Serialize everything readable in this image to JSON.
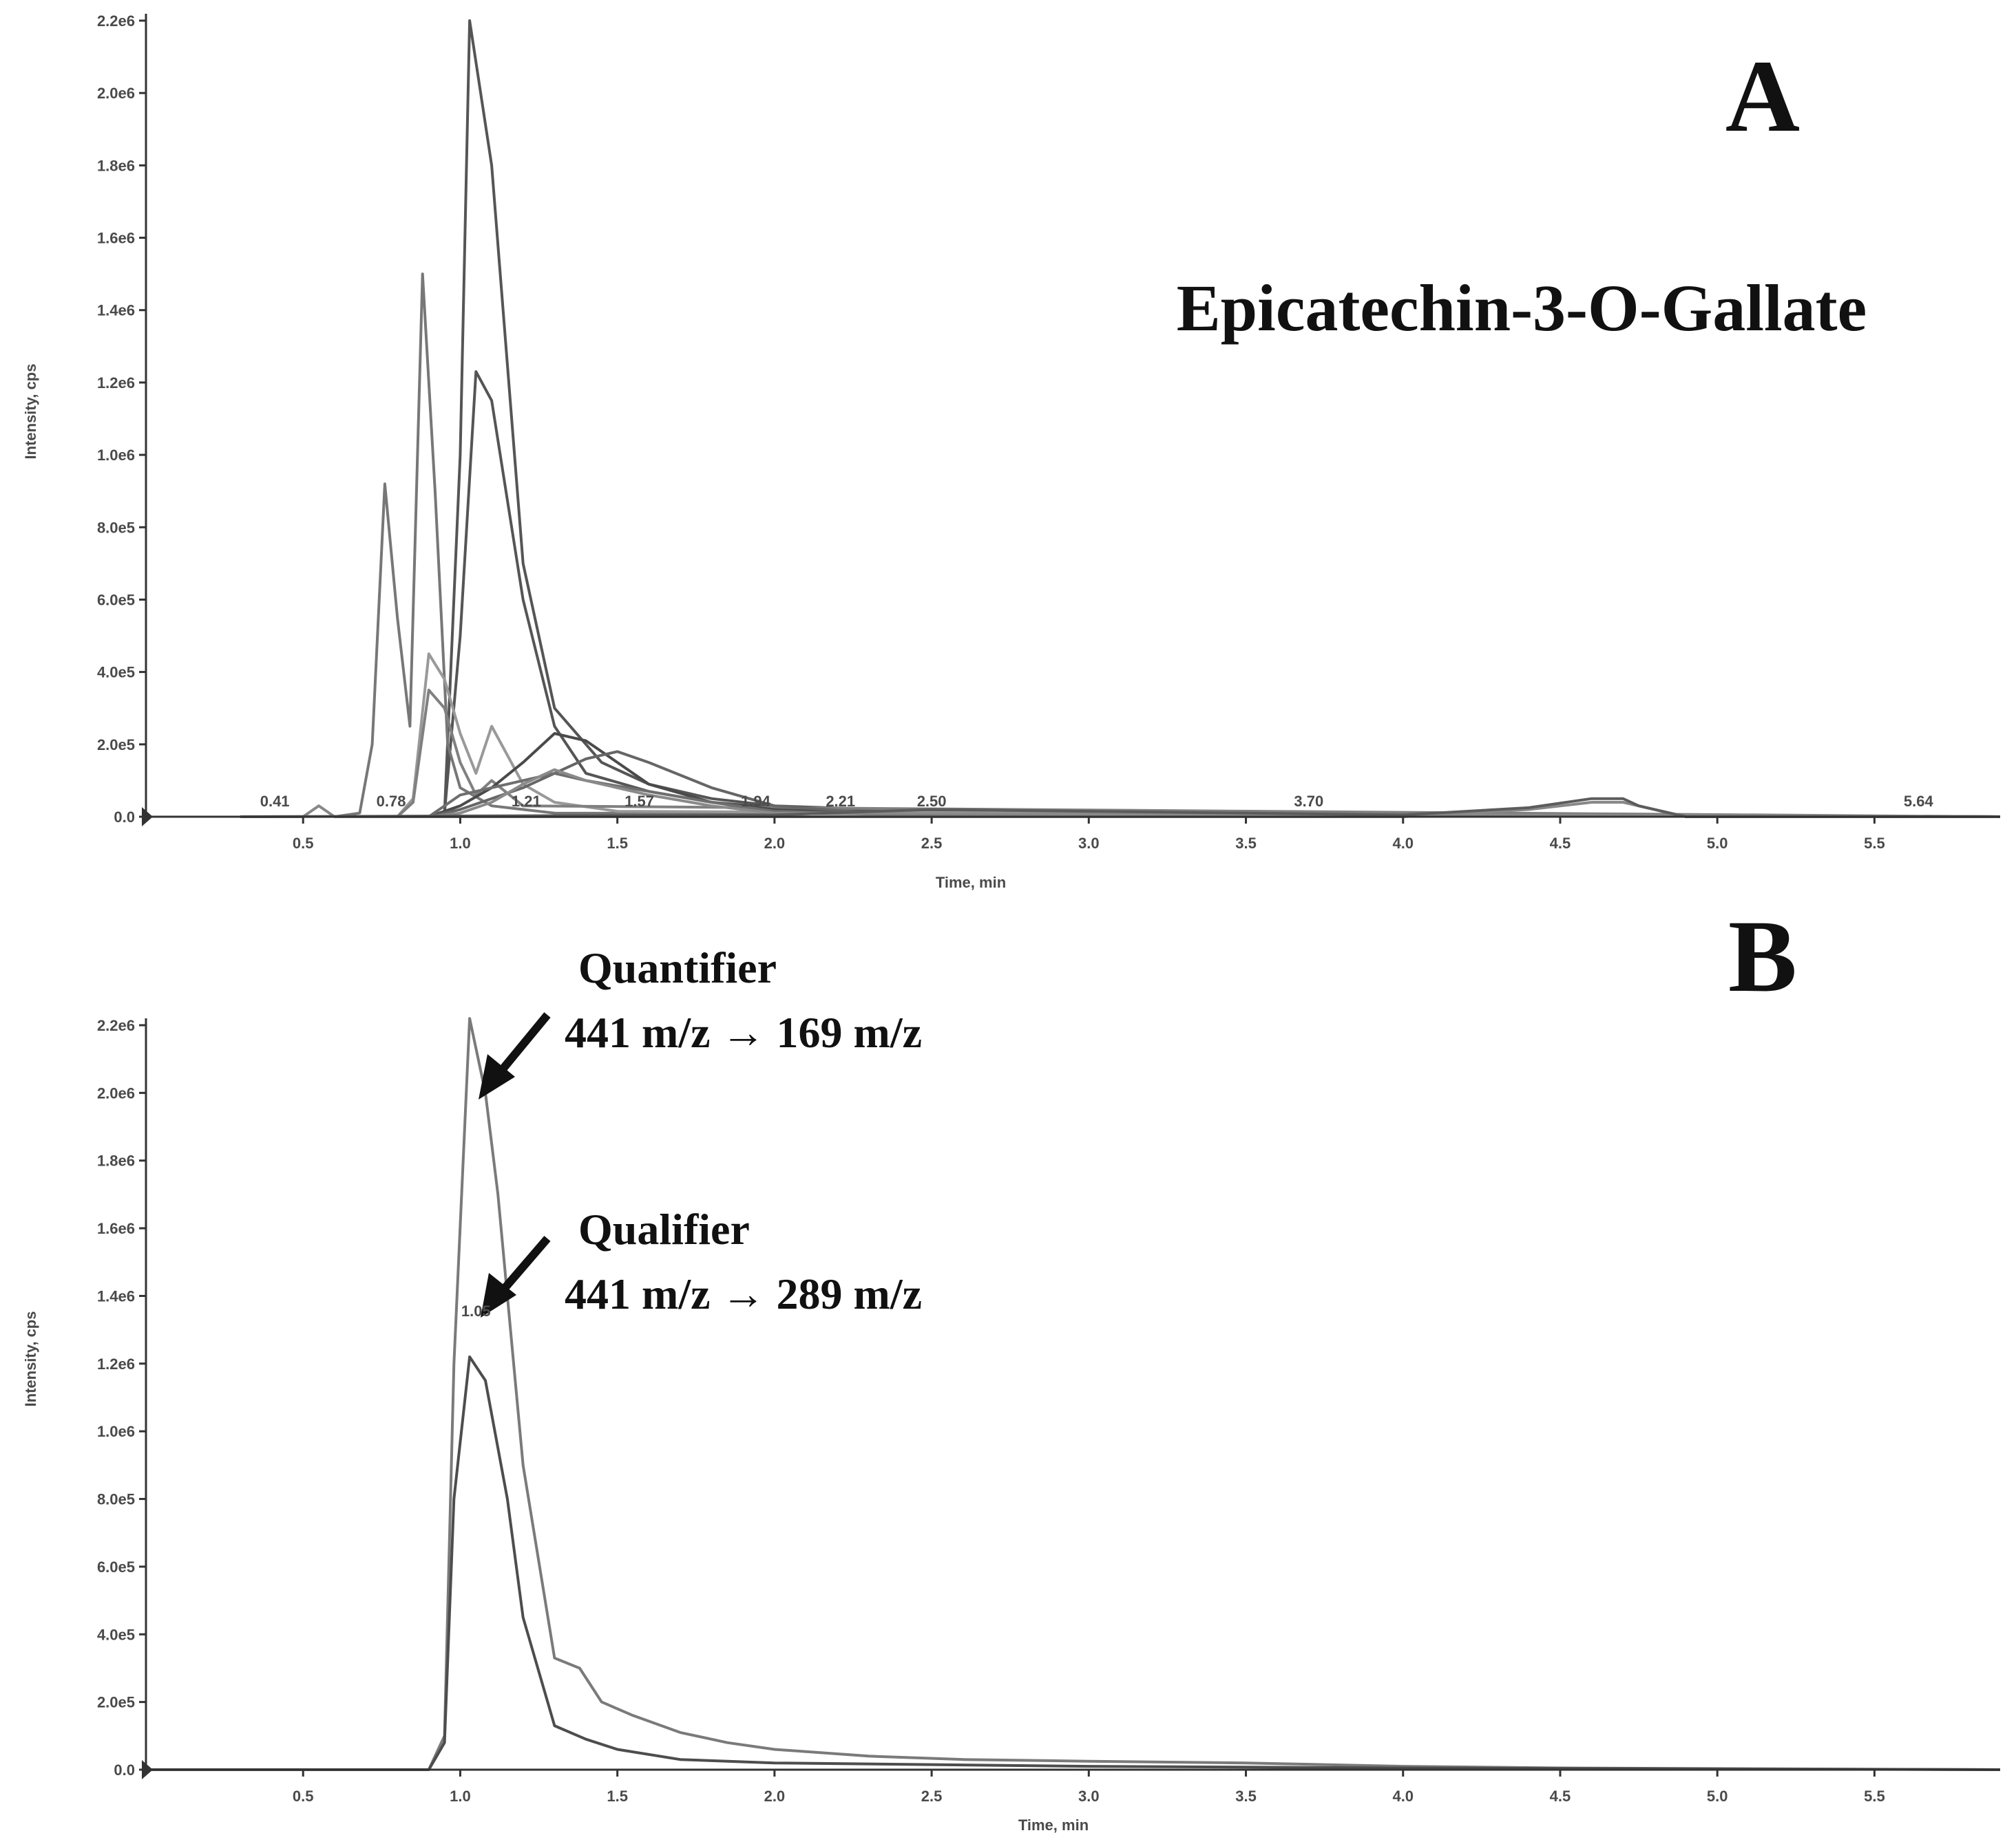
{
  "chart_data": [
    {
      "type": "line",
      "panel_label": "A",
      "title": "Epicatechin-3-O-Gallate",
      "xlabel": "Time, min",
      "ylabel": "Intensity, cps",
      "xlim": [
        0,
        5.9
      ],
      "ylim": [
        0,
        2200000
      ],
      "x_ticks": [
        0.5,
        1.0,
        1.5,
        2.0,
        2.5,
        3.0,
        3.5,
        4.0,
        4.5,
        5.0,
        5.5
      ],
      "x_tick_labels": [
        "0.5",
        "1.0",
        "1.5",
        "2.0",
        "2.5",
        "3.0",
        "3.5",
        "4.0",
        "4.5",
        "5.0",
        "5.5"
      ],
      "y_ticks": [
        0,
        200000,
        400000,
        600000,
        800000,
        1000000,
        1200000,
        1400000,
        1600000,
        1800000,
        2000000,
        2200000
      ],
      "y_tick_labels": [
        "0.0",
        "2.0e5",
        "4.0e5",
        "6.0e5",
        "8.0e5",
        "1.0e6",
        "1.2e6",
        "1.4e6",
        "1.6e6",
        "1.8e6",
        "2.0e6",
        "2.2e6"
      ],
      "peak_labels": [
        {
          "x": 0.41,
          "text": "0.41"
        },
        {
          "x": 0.78,
          "text": "0.78"
        },
        {
          "x": 1.21,
          "text": "1.21"
        },
        {
          "x": 1.57,
          "text": "1.57"
        },
        {
          "x": 1.94,
          "text": "1.94"
        },
        {
          "x": 2.21,
          "text": "2.21"
        },
        {
          "x": 2.5,
          "text": "2.50"
        },
        {
          "x": 3.7,
          "text": "3.70"
        },
        {
          "x": 5.64,
          "text": "5.64"
        }
      ],
      "series": [
        {
          "color": "#555555",
          "x": [
            0.6,
            0.9,
            0.95,
            1.0,
            1.03,
            1.1,
            1.2,
            1.3,
            1.45,
            1.6,
            1.8,
            2.0,
            2.5,
            3.0,
            5.9
          ],
          "y": [
            0,
            0,
            10000,
            1000000,
            2200000,
            1800000,
            700000,
            300000,
            150000,
            90000,
            50000,
            30000,
            15000,
            8000,
            0
          ]
        },
        {
          "color": "#555555",
          "x": [
            0.9,
            0.95,
            1.0,
            1.05,
            1.1,
            1.2,
            1.3,
            1.4,
            1.6,
            1.8,
            2.0,
            2.5,
            5.9
          ],
          "y": [
            0,
            10000,
            500000,
            1230000,
            1150000,
            600000,
            250000,
            120000,
            70000,
            40000,
            25000,
            10000,
            0
          ]
        },
        {
          "color": "#777777",
          "x": [
            0.6,
            0.68,
            0.72,
            0.76,
            0.8,
            0.84,
            0.88,
            0.92,
            0.96,
            1.0,
            1.1,
            1.3,
            5.9
          ],
          "y": [
            0,
            10000,
            200000,
            920000,
            550000,
            250000,
            1500000,
            900000,
            200000,
            80000,
            30000,
            10000,
            0
          ]
        },
        {
          "color": "#999999",
          "x": [
            0.8,
            0.85,
            0.9,
            0.95,
            1.0,
            1.05,
            1.1,
            1.2,
            1.3,
            1.5,
            5.9
          ],
          "y": [
            0,
            50000,
            450000,
            380000,
            230000,
            120000,
            250000,
            90000,
            40000,
            15000,
            0
          ]
        },
        {
          "color": "#808080",
          "x": [
            0.8,
            0.85,
            0.9,
            0.95,
            1.0,
            1.05,
            1.1,
            1.2,
            5.9
          ],
          "y": [
            0,
            40000,
            350000,
            300000,
            150000,
            60000,
            100000,
            30000,
            0
          ]
        },
        {
          "color": "#4a4a4a",
          "x": [
            0.9,
            1.0,
            1.1,
            1.2,
            1.3,
            1.4,
            1.5,
            1.6,
            1.8,
            2.0,
            2.4,
            5.9
          ],
          "y": [
            0,
            30000,
            80000,
            150000,
            230000,
            210000,
            150000,
            90000,
            40000,
            20000,
            5000,
            0
          ]
        },
        {
          "color": "#666666",
          "x": [
            0.9,
            1.0,
            1.2,
            1.4,
            1.5,
            1.6,
            1.8,
            2.0,
            2.4,
            5.9
          ],
          "y": [
            0,
            20000,
            80000,
            160000,
            180000,
            150000,
            80000,
            30000,
            5000,
            0
          ]
        },
        {
          "color": "#6e6e6e",
          "x": [
            0.9,
            1.0,
            1.2,
            1.3,
            1.4,
            1.6,
            1.8,
            2.0,
            2.4,
            5.9
          ],
          "y": [
            0,
            60000,
            100000,
            120000,
            100000,
            70000,
            40000,
            15000,
            5000,
            0
          ]
        },
        {
          "color": "#8a8a8a",
          "x": [
            0.9,
            1.0,
            1.1,
            1.2,
            1.3,
            1.4,
            1.6,
            1.8,
            2.0,
            5.9
          ],
          "y": [
            0,
            10000,
            40000,
            90000,
            130000,
            100000,
            60000,
            30000,
            10000,
            0
          ]
        },
        {
          "color": "#888888",
          "x": [
            0.3,
            0.5,
            0.55,
            0.6,
            4.0,
            4.4,
            4.6,
            4.7,
            4.8,
            4.9,
            5.9
          ],
          "y": [
            0,
            0,
            30000,
            0,
            0,
            20000,
            40000,
            40000,
            20000,
            0,
            0
          ]
        },
        {
          "color": "#5c5c5c",
          "x": [
            0.3,
            2.0,
            2.5,
            3.0,
            4.0,
            4.4,
            4.6,
            4.7,
            4.75,
            4.9,
            5.9
          ],
          "y": [
            0,
            5000,
            20000,
            15000,
            5000,
            25000,
            50000,
            50000,
            30000,
            0,
            0
          ]
        }
      ]
    },
    {
      "type": "line",
      "panel_label": "B",
      "xlabel": "Time, min",
      "ylabel": "Intensity, cps",
      "xlim": [
        0,
        5.9
      ],
      "ylim": [
        0,
        2200000
      ],
      "x_ticks": [
        0.5,
        1.0,
        1.5,
        2.0,
        2.5,
        3.0,
        3.5,
        4.0,
        4.5,
        5.0,
        5.5
      ],
      "x_tick_labels": [
        "0.5",
        "1.0",
        "1.5",
        "2.0",
        "2.5",
        "3.0",
        "3.5",
        "4.0",
        "4.5",
        "5.0",
        "5.5"
      ],
      "y_ticks": [
        0,
        200000,
        400000,
        600000,
        800000,
        1000000,
        1200000,
        1400000,
        1600000,
        1800000,
        2000000,
        2200000
      ],
      "y_tick_labels": [
        "0.0",
        "2.0e5",
        "4.0e5",
        "6.0e5",
        "8.0e5",
        "1.0e6",
        "1.2e6",
        "1.4e6",
        "1.6e6",
        "1.8e6",
        "2.0e6",
        "2.2e6"
      ],
      "peak_labels": [
        {
          "x": 1.05,
          "text": "1.05"
        }
      ],
      "annotations": [
        {
          "line1": "Quantifier",
          "line2": "441 m/z → 169 m/z"
        },
        {
          "line1": "Qualifier",
          "line2": "441 m/z → 289 m/z"
        }
      ],
      "series": [
        {
          "name": "Quantifier",
          "color": "#7a7a7a",
          "x": [
            0,
            0.9,
            0.95,
            0.98,
            1.03,
            1.08,
            1.12,
            1.2,
            1.3,
            1.38,
            1.45,
            1.55,
            1.7,
            1.85,
            2.0,
            2.3,
            2.6,
            3.0,
            3.5,
            4.0,
            4.5,
            5.9
          ],
          "y": [
            0,
            0,
            100000,
            1200000,
            2220000,
            2000000,
            1700000,
            900000,
            330000,
            300000,
            200000,
            160000,
            110000,
            80000,
            60000,
            40000,
            30000,
            25000,
            20000,
            10000,
            5000,
            0
          ]
        },
        {
          "name": "Qualifier",
          "color": "#4d4d4d",
          "x": [
            0,
            0.9,
            0.95,
            0.98,
            1.03,
            1.08,
            1.15,
            1.2,
            1.3,
            1.4,
            1.5,
            1.7,
            2.0,
            2.5,
            3.0,
            4.0,
            5.9
          ],
          "y": [
            0,
            0,
            80000,
            800000,
            1220000,
            1150000,
            800000,
            450000,
            130000,
            90000,
            60000,
            30000,
            20000,
            15000,
            10000,
            5000,
            0
          ]
        }
      ]
    }
  ]
}
